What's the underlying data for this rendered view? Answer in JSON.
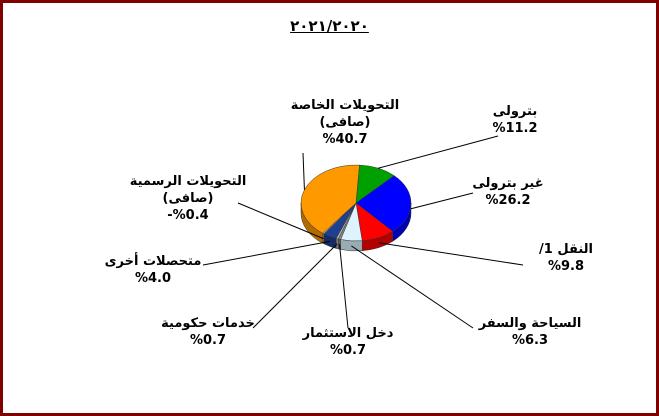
{
  "chart_data": {
    "type": "pie",
    "title": "٢٠٢١/٢٠٢٠",
    "categories": [
      "بترولى",
      "غير بترولى",
      "النقل 1/",
      "السياحة والسفر",
      "دخل الاستثمار",
      "خدمات حكومية",
      "متحصلات أخرى",
      "التحويلات الرسمية\n(صافى)",
      "التحويلات الخاصة\n(صافى)"
    ],
    "values": [
      11.2,
      26.2,
      9.8,
      6.3,
      0.7,
      0.7,
      4.0,
      -0.4,
      40.7
    ],
    "value_labels": [
      "%11.2",
      "%26.2",
      "%9.8",
      "%6.3",
      "%0.7",
      "%0.7",
      "%4.0",
      "-%0.4",
      "%40.7"
    ],
    "colors": [
      "#00a000",
      "#0000ff",
      "#ff0000",
      "#ddf4ff",
      "#8a8a8a",
      "#b0b0b0",
      "#1f3f8f",
      "#c0c0c0",
      "#ff9900"
    ]
  }
}
